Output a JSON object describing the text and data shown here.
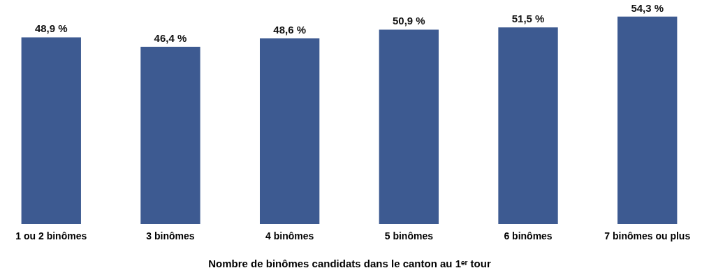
{
  "chart_data": {
    "type": "bar",
    "xlabel": "Nombre de binômes candidats dans le canton au 1ᵉʳ tour",
    "categories": [
      "1 ou 2 binômes",
      "3 binômes",
      "4 binômes",
      "5 binômes",
      "6 binômes",
      "7 binômes ou plus"
    ],
    "values": [
      48.9,
      46.4,
      48.6,
      50.9,
      51.5,
      54.3
    ],
    "value_labels": [
      "48,9 %",
      "46,4 %",
      "48,6 %",
      "50,9 %",
      "51,5 %",
      "54,3 %"
    ],
    "color": "#3d5a91",
    "tick_labels": "x"
  }
}
